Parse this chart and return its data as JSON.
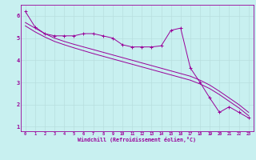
{
  "xlabel": "Windchill (Refroidissement éolien,°C)",
  "background_color": "#c8f0f0",
  "line_color": "#990099",
  "grid_color": "#b8dede",
  "ylim": [
    0.8,
    6.5
  ],
  "xlim": [
    -0.5,
    23.5
  ],
  "xticks": [
    0,
    1,
    2,
    3,
    4,
    5,
    6,
    7,
    8,
    9,
    10,
    11,
    12,
    13,
    14,
    15,
    16,
    17,
    18,
    19,
    20,
    21,
    22,
    23
  ],
  "yticks": [
    1,
    2,
    3,
    4,
    5,
    6
  ],
  "series1_x": [
    0,
    1,
    2,
    3,
    4,
    5,
    6,
    7,
    8,
    9,
    10,
    11,
    12,
    13,
    14,
    15,
    16,
    17,
    18,
    19,
    20,
    21,
    22,
    23
  ],
  "series1_y": [
    6.2,
    5.5,
    5.2,
    5.1,
    5.1,
    5.1,
    5.2,
    5.2,
    5.1,
    5.0,
    4.7,
    4.6,
    4.6,
    4.6,
    4.65,
    5.35,
    5.45,
    3.65,
    3.0,
    2.3,
    1.65,
    1.9,
    1.65,
    1.4
  ],
  "series2_x": [
    0,
    1,
    2,
    3,
    4,
    5,
    6,
    7,
    8,
    9,
    10,
    11,
    12,
    13,
    14,
    15,
    16,
    17,
    18,
    19,
    20,
    21,
    22,
    23
  ],
  "series2_y": [
    5.7,
    5.45,
    5.2,
    5.0,
    4.85,
    4.72,
    4.6,
    4.48,
    4.36,
    4.24,
    4.12,
    4.0,
    3.88,
    3.76,
    3.64,
    3.52,
    3.4,
    3.28,
    3.1,
    2.88,
    2.6,
    2.3,
    2.0,
    1.65
  ],
  "series3_x": [
    0,
    1,
    2,
    3,
    4,
    5,
    6,
    7,
    8,
    9,
    10,
    11,
    12,
    13,
    14,
    15,
    16,
    17,
    18,
    19,
    20,
    21,
    22,
    23
  ],
  "series3_y": [
    5.55,
    5.28,
    5.05,
    4.85,
    4.7,
    4.56,
    4.43,
    4.3,
    4.18,
    4.06,
    3.94,
    3.82,
    3.7,
    3.58,
    3.46,
    3.34,
    3.22,
    3.1,
    2.93,
    2.72,
    2.45,
    2.15,
    1.85,
    1.5
  ]
}
